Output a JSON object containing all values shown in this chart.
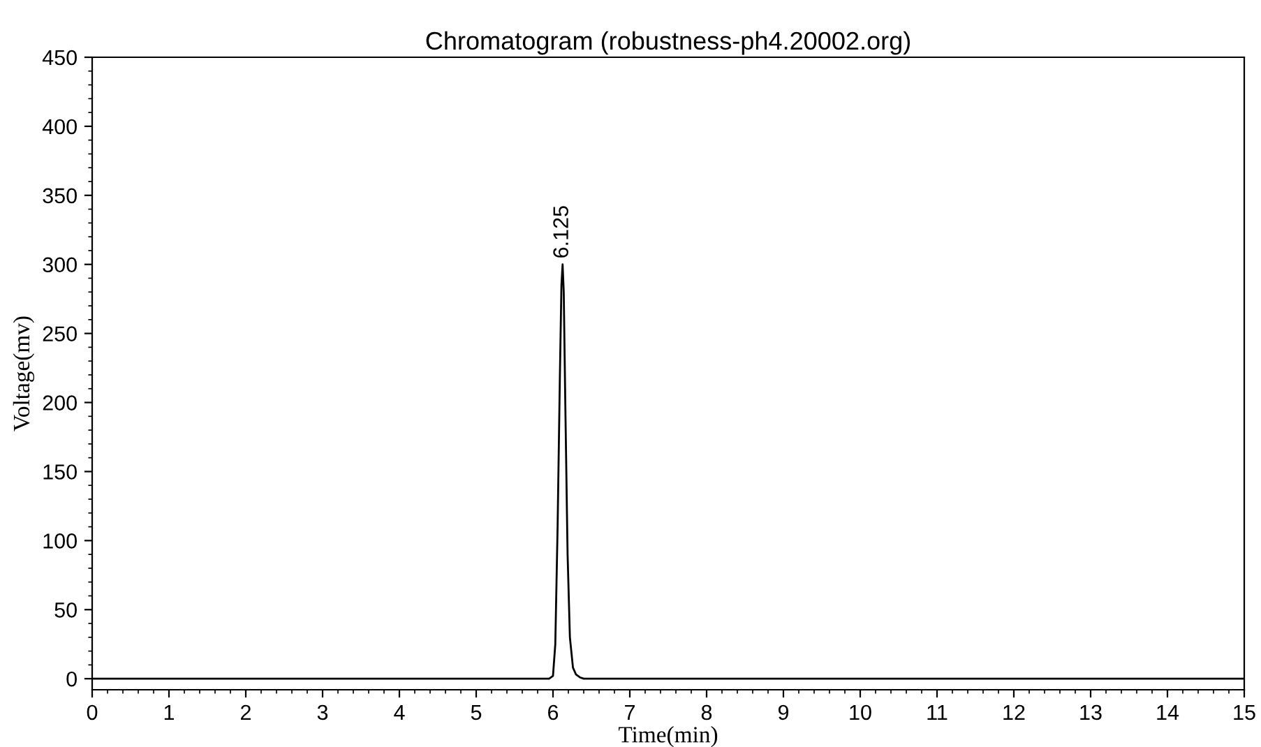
{
  "chart_data": {
    "type": "line",
    "title": "Chromatogram (robustness-ph4.20002.org)",
    "xlabel": "Time(min)",
    "ylabel": "Voltage(mv)",
    "x": [
      0,
      5.95,
      6.0,
      6.03,
      6.06,
      6.09,
      6.11,
      6.125,
      6.14,
      6.16,
      6.19,
      6.22,
      6.26,
      6.3,
      6.35,
      6.4,
      15
    ],
    "series": [
      {
        "color": "#000000",
        "values": [
          0,
          0,
          2,
          25,
          110,
          220,
          285,
          300,
          280,
          200,
          90,
          30,
          8,
          3,
          1,
          0,
          0
        ]
      }
    ],
    "annotations": [
      {
        "text": "6.125",
        "x": 6.125,
        "y": 300
      }
    ],
    "xlim": [
      0,
      15
    ],
    "xticks": [
      0,
      1,
      2,
      3,
      4,
      5,
      6,
      7,
      8,
      9,
      10,
      11,
      12,
      13,
      14,
      15
    ],
    "ylim": [
      -8,
      450
    ],
    "yticks": [
      0,
      50,
      100,
      150,
      200,
      250,
      300,
      350,
      400,
      450
    ],
    "grid": false,
    "legend": false,
    "marker": "none",
    "line_style": "solid"
  }
}
